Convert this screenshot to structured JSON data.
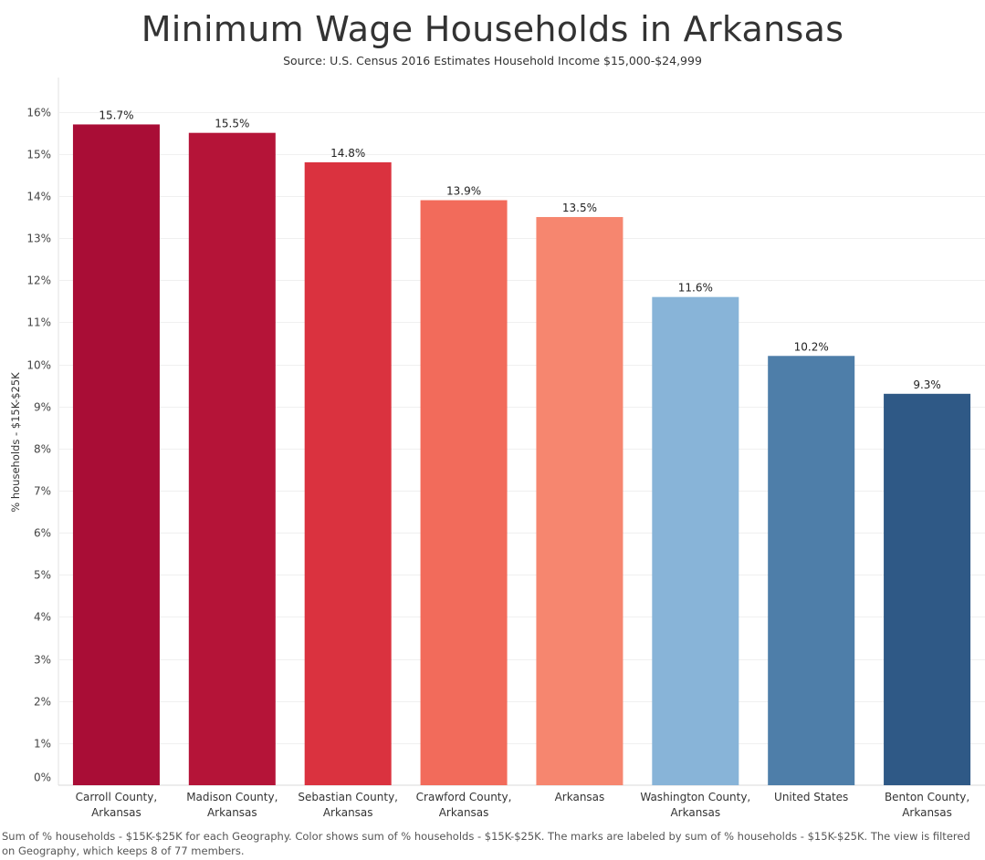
{
  "chart_data": {
    "type": "bar",
    "title": "Minimum Wage Households in Arkansas",
    "subtitle": "Source: U.S. Census 2016 Estimates Household Income $15,000-$24,999",
    "ylabel": "% households - $15K-$25K",
    "xlabel": "",
    "ylim": [
      0,
      16.5
    ],
    "yticks": [
      0,
      1,
      2,
      3,
      4,
      5,
      6,
      7,
      8,
      9,
      10,
      11,
      12,
      13,
      14,
      15,
      16
    ],
    "ytick_labels": [
      "0%",
      "1%",
      "2%",
      "3%",
      "4%",
      "5%",
      "6%",
      "7%",
      "8%",
      "9%",
      "10%",
      "11%",
      "12%",
      "13%",
      "14%",
      "15%",
      "16%"
    ],
    "grid": true,
    "categories": [
      [
        "Carroll County,",
        "Arkansas"
      ],
      [
        "Madison County,",
        "Arkansas"
      ],
      [
        "Sebastian County,",
        "Arkansas"
      ],
      [
        "Crawford County,",
        "Arkansas"
      ],
      [
        "Arkansas"
      ],
      [
        "Washington County,",
        "Arkansas"
      ],
      [
        "United States"
      ],
      [
        "Benton County,",
        "Arkansas"
      ]
    ],
    "values": [
      15.7,
      15.5,
      14.8,
      13.9,
      13.5,
      11.6,
      10.2,
      9.3
    ],
    "data_labels": [
      "15.7%",
      "15.5%",
      "14.8%",
      "13.9%",
      "13.5%",
      "11.6%",
      "10.2%",
      "9.3%"
    ],
    "colors": [
      "#a90d36",
      "#b51438",
      "#da323f",
      "#f26b5b",
      "#f6866f",
      "#88b4d8",
      "#4e7ea9",
      "#2f5986"
    ]
  },
  "footnote": "Sum of % households - $15K-$25K for each Geography.  Color shows sum of % households - $15K-$25K.  The marks are labeled by sum of % households - $15K-$25K. The view is filtered on Geography, which keeps 8 of 77 members."
}
